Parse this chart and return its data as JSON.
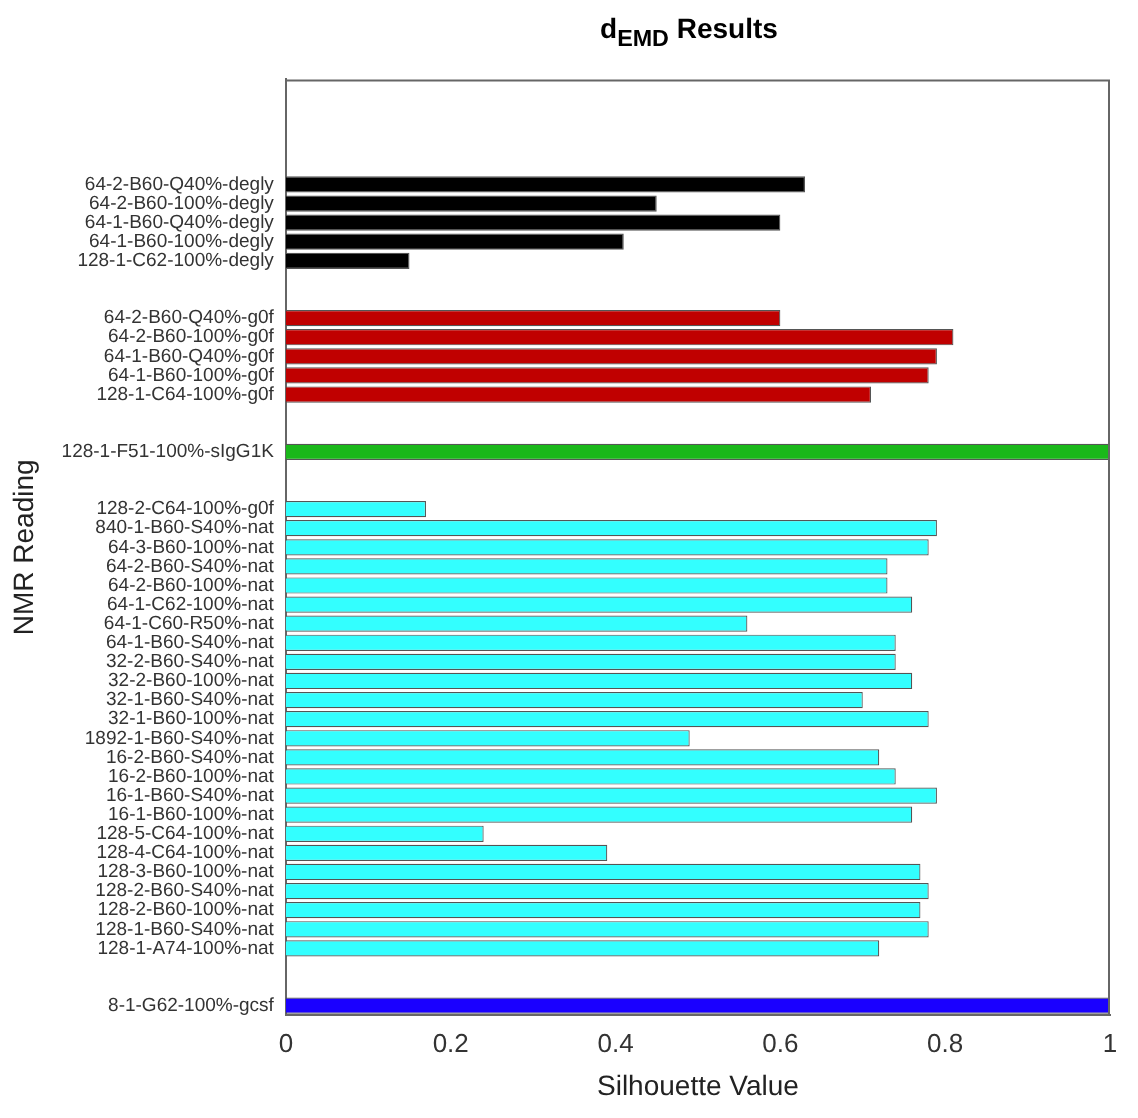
{
  "chart_data": {
    "type": "bar",
    "orientation": "horizontal",
    "title": "d$_{EMD}$ Results",
    "xlabel": "Silhouette Value",
    "ylabel": "NMR Reading",
    "categories": [
      null,
      null,
      null,
      null,
      null,
      "64-2-B60-Q40%-degly",
      "64-2-B60-100%-degly",
      "64-1-B60-Q40%-degly",
      "64-1-B60-100%-degly",
      "128-1-C62-100%-degly",
      null,
      null,
      "64-2-B60-Q40%-g0f",
      "64-2-B60-100%-g0f",
      "64-1-B60-Q40%-g0f",
      "64-1-B60-100%-g0f",
      "128-1-C64-100%-g0f",
      null,
      null,
      "128-1-F51-100%-sIgG1K",
      null,
      null,
      "128-2-C64-100%-g0f",
      "840-1-B60-S40%-nat",
      "64-3-B60-100%-nat",
      "64-2-B60-S40%-nat",
      "64-2-B60-100%-nat",
      "64-1-C62-100%-nat",
      "64-1-C60-R50%-nat",
      "64-1-B60-S40%-nat",
      "32-2-B60-S40%-nat",
      "32-2-B60-100%-nat",
      "32-1-B60-S40%-nat",
      "32-1-B60-100%-nat",
      "1892-1-B60-S40%-nat",
      "16-2-B60-S40%-nat",
      "16-2-B60-100%-nat",
      "16-1-B60-S40%-nat",
      "16-1-B60-100%-nat",
      "128-5-C64-100%-nat",
      "128-4-C64-100%-nat",
      "128-3-B60-100%-nat",
      "128-2-B60-S40%-nat",
      "128-2-B60-100%-nat",
      "128-1-B60-S40%-nat",
      "128-1-A74-100%-nat",
      null,
      null,
      "8-1-G62-100%-gcsf"
    ],
    "values": [
      null,
      null,
      null,
      null,
      null,
      0.63,
      0.45,
      0.6,
      0.41,
      0.15,
      null,
      null,
      0.6,
      0.81,
      0.79,
      0.78,
      0.71,
      null,
      null,
      1,
      null,
      null,
      0.17,
      0.79,
      0.78,
      0.73,
      0.73,
      0.76,
      0.56,
      0.74,
      0.74,
      0.76,
      0.7,
      0.78,
      0.49,
      0.72,
      0.74,
      0.79,
      0.76,
      0.24,
      0.39,
      0.77,
      0.78,
      0.77,
      0.78,
      0.72,
      null,
      null,
      1
    ],
    "colors": [
      null,
      null,
      null,
      null,
      null,
      "#000000",
      "#000000",
      "#000000",
      "#000000",
      "#000000",
      null,
      null,
      "#c00000",
      "#c00000",
      "#c00000",
      "#c00000",
      "#c00000",
      null,
      null,
      "#1ab81a",
      null,
      null,
      "#33ffff",
      "#33ffff",
      "#33ffff",
      "#33ffff",
      "#33ffff",
      "#33ffff",
      "#33ffff",
      "#33ffff",
      "#33ffff",
      "#33ffff",
      "#33ffff",
      "#33ffff",
      "#33ffff",
      "#33ffff",
      "#33ffff",
      "#33ffff",
      "#33ffff",
      "#33ffff",
      "#33ffff",
      "#33ffff",
      "#33ffff",
      "#33ffff",
      "#33ffff",
      "#33ffff",
      null,
      null,
      "#1a00ff"
    ],
    "xlim": [
      0,
      1
    ],
    "xticks": [
      0,
      0.2,
      0.4,
      0.6,
      0.8,
      1
    ],
    "grid": false
  }
}
